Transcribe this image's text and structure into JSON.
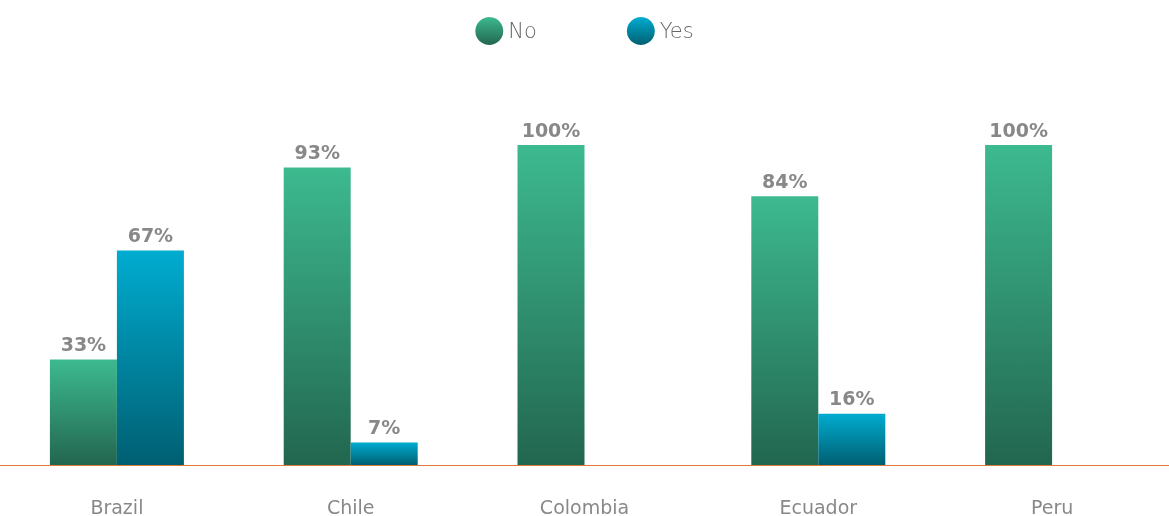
{
  "chart_data": {
    "type": "bar",
    "categories": [
      "Brazil",
      "Chile",
      "Colombia",
      "Ecuador",
      "Peru"
    ],
    "series": [
      {
        "name": "No",
        "color": "#3dba8f",
        "values": [
          33,
          93,
          100,
          84,
          100
        ],
        "value_labels": [
          "33%",
          "93%",
          "100%",
          "84%",
          "100%"
        ]
      },
      {
        "name": "Yes",
        "color": "#00acd0",
        "values": [
          67,
          7,
          null,
          16,
          null
        ],
        "value_labels": [
          "67%",
          "7%",
          null,
          "16%",
          null
        ]
      }
    ],
    "ylim": [
      0,
      100
    ],
    "tick_labels": "x",
    "legend": "top"
  }
}
